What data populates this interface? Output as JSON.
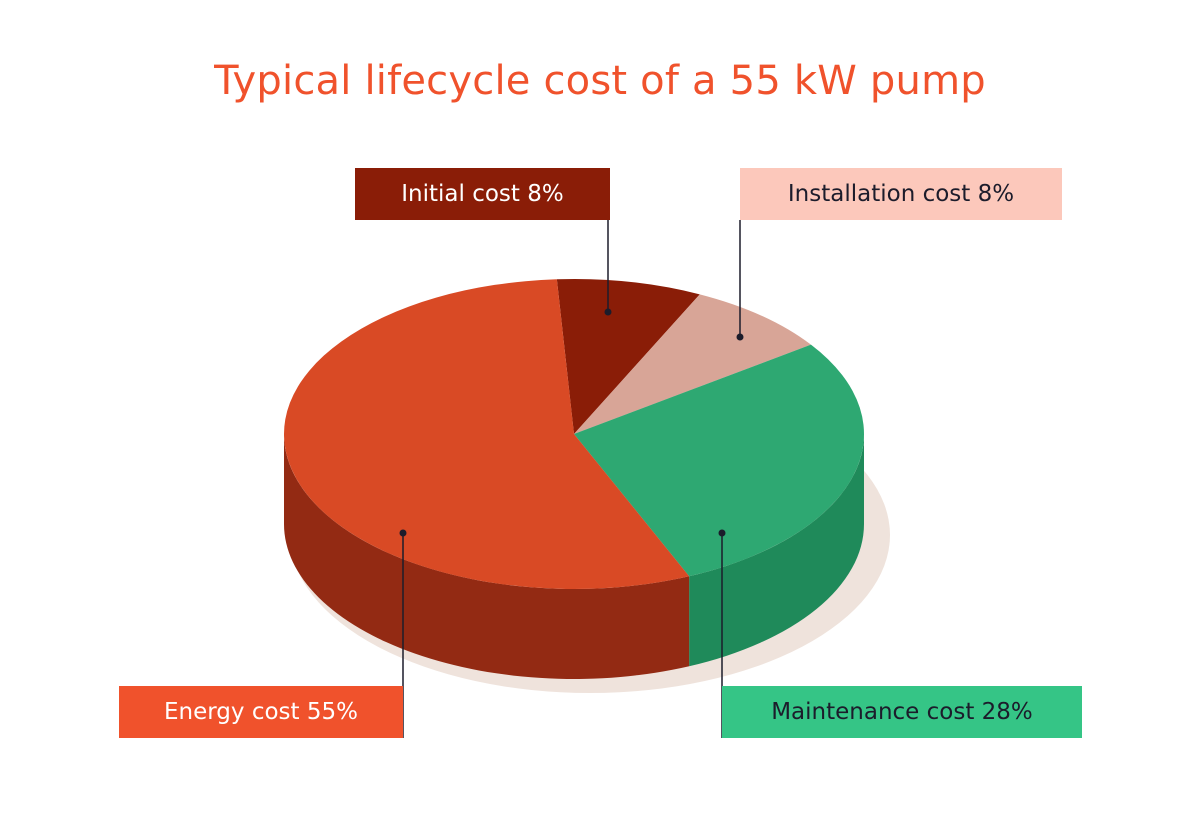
{
  "title": "Typical lifecycle cost of a 55 kW pump",
  "chart_data": {
    "type": "pie",
    "title": "Typical lifecycle cost of a 55 kW pump",
    "slices": [
      {
        "name": "Initial cost",
        "value": 8,
        "label": "Initial cost 8%",
        "color": "#8a1d07",
        "side_color": "#6e1706",
        "label_bg": "#8a1d07",
        "label_fg": "#ffffff"
      },
      {
        "name": "Installation cost",
        "value": 8,
        "label": "Installation cost 8%",
        "color": "#d8a597",
        "side_color": "#b88576",
        "label_bg": "#fcc8bb",
        "label_fg": "#1c1c2b"
      },
      {
        "name": "Maintenance cost",
        "value": 28,
        "label": "Maintenance cost 28%",
        "color": "#2ea872",
        "side_color": "#1f8a5a",
        "label_bg": "#35c586",
        "label_fg": "#1c1c2b"
      },
      {
        "name": "Energy cost",
        "value": 55,
        "label": "Energy cost 55%",
        "color": "#d94a25",
        "side_color": "#932a13",
        "label_bg": "#f0522c",
        "label_fg": "#ffffff"
      }
    ],
    "style": "3d-pie"
  }
}
